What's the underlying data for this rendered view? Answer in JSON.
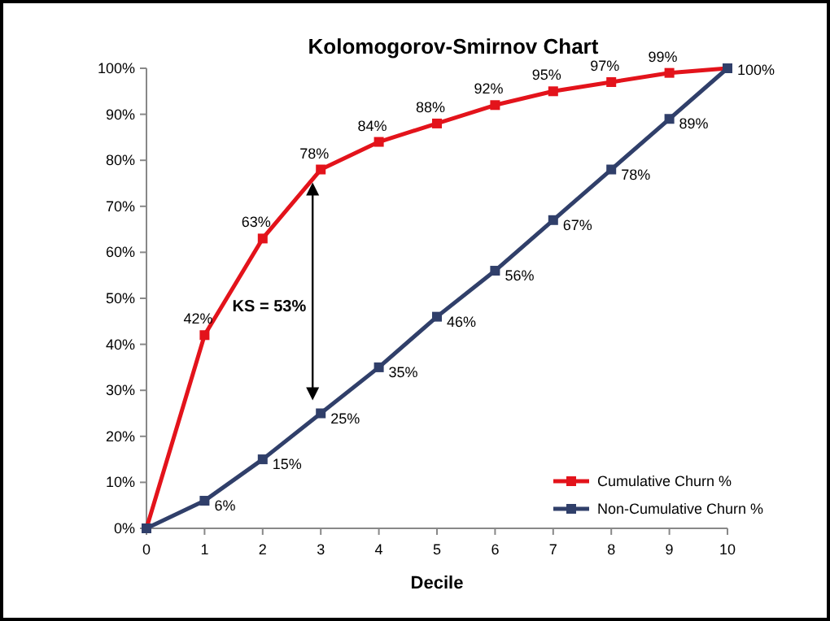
{
  "chart_data": {
    "type": "line",
    "title": "Kolomogorov-Smirnov Chart",
    "xlabel": "Decile",
    "x": [
      0,
      1,
      2,
      3,
      4,
      5,
      6,
      7,
      8,
      9,
      10
    ],
    "xlim": [
      0,
      10
    ],
    "xticks": [
      0,
      1,
      2,
      3,
      4,
      5,
      6,
      7,
      8,
      9,
      10
    ],
    "ylim": [
      0,
      100
    ],
    "yticks": [
      {
        "value": 0,
        "label": "0%"
      },
      {
        "value": 10,
        "label": "10%"
      },
      {
        "value": 20,
        "label": "20%"
      },
      {
        "value": 30,
        "label": "30%"
      },
      {
        "value": 40,
        "label": "40%"
      },
      {
        "value": 50,
        "label": "50%"
      },
      {
        "value": 60,
        "label": "60%"
      },
      {
        "value": 70,
        "label": "70%"
      },
      {
        "value": 80,
        "label": "80%"
      },
      {
        "value": 90,
        "label": "90%"
      },
      {
        "value": 100,
        "label": "100%"
      }
    ],
    "series": [
      {
        "name": "Cumulative Churn %",
        "color": "#e3131b",
        "values": [
          0,
          42,
          63,
          78,
          84,
          88,
          92,
          95,
          97,
          99,
          100
        ],
        "value_labels": [
          null,
          "42%",
          "63%",
          "78%",
          "84%",
          "88%",
          "92%",
          "95%",
          "97%",
          "99%",
          "100%"
        ]
      },
      {
        "name": "Non-Cumulative Churn %",
        "color": "#303f6a",
        "values": [
          0,
          6,
          15,
          25,
          35,
          46,
          56,
          67,
          78,
          89,
          100
        ],
        "value_labels": [
          null,
          "6%",
          "15%",
          "25%",
          "35%",
          "46%",
          "56%",
          "67%",
          "78%",
          "89%",
          null
        ]
      }
    ],
    "annotations": [
      "KS = 53%"
    ],
    "grid": false,
    "legend": "bottom right",
    "marker": "square",
    "line_style": "solid"
  }
}
